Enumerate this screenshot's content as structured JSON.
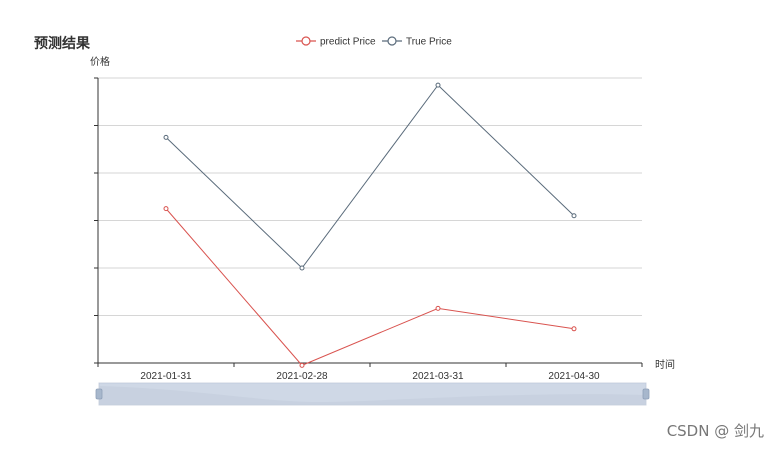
{
  "chart_data": {
    "type": "line",
    "title": "预测结果",
    "xlabel": "时间",
    "ylabel": "价格",
    "categories": [
      "2021-01-31",
      "2021-02-28",
      "2021-03-31",
      "2021-04-30"
    ],
    "ylim": [
      0,
      6
    ],
    "series": [
      {
        "name": "predict Price",
        "values": [
          3.25,
          -0.05,
          1.15,
          0.72
        ],
        "color": "#d9534f"
      },
      {
        "name": "True Price",
        "values": [
          4.75,
          2.0,
          5.85,
          3.1
        ],
        "color": "#5a6b7b"
      }
    ],
    "grid": true,
    "legend_position": "top-center",
    "data_zoom": {
      "start": 0,
      "end": 100
    }
  },
  "watermark": "CSDN @ 剑九"
}
